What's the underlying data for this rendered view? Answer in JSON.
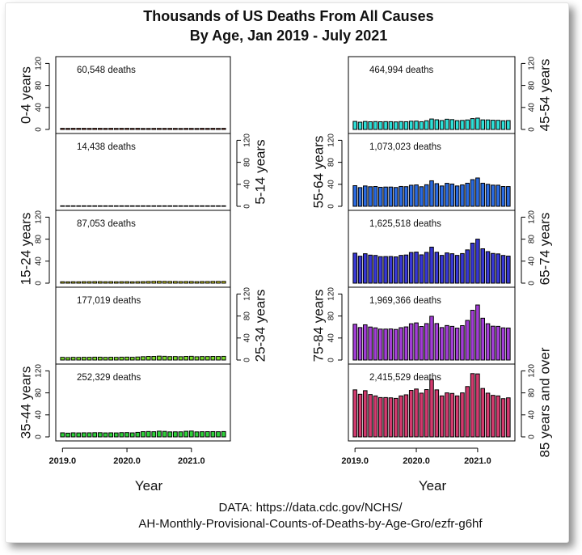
{
  "chart_data": {
    "type": "bar",
    "title_lines": [
      "Thousands of US Deaths From All Causes",
      "By Age, Jan 2019 - July 2021"
    ],
    "xlabel": "Year",
    "x_ticks": [
      "2019.0",
      "2020.0",
      "2021.0"
    ],
    "y_ticks": [
      "0",
      "40",
      "80",
      "120"
    ],
    "ylim": [
      0,
      125
    ],
    "source_lines": [
      "DATA: https://data.cdc.gov/NCHS/",
      "AH-Monthly-Provisional-Counts-of-Deaths-by-Age-Gro/ezfr-g6hf"
    ],
    "months": [
      "2019-01",
      "2019-02",
      "2019-03",
      "2019-04",
      "2019-05",
      "2019-06",
      "2019-07",
      "2019-08",
      "2019-09",
      "2019-10",
      "2019-11",
      "2019-12",
      "2020-01",
      "2020-02",
      "2020-03",
      "2020-04",
      "2020-05",
      "2020-06",
      "2020-07",
      "2020-08",
      "2020-09",
      "2020-10",
      "2020-11",
      "2020-12",
      "2021-01",
      "2021-02",
      "2021-03",
      "2021-04",
      "2021-05",
      "2021-06",
      "2021-07"
    ],
    "series": [
      {
        "name": "0-4 years",
        "total_label": "60,548 deaths",
        "color": "#e8401c",
        "values": [
          2.0,
          1.9,
          2.0,
          2.0,
          2.0,
          1.9,
          2.0,
          2.0,
          1.9,
          2.0,
          1.9,
          2.0,
          2.0,
          1.9,
          2.0,
          1.8,
          1.8,
          1.9,
          1.9,
          1.9,
          1.9,
          1.9,
          1.8,
          1.9,
          1.9,
          1.8,
          2.0,
          1.9,
          2.0,
          1.9,
          2.0
        ]
      },
      {
        "name": "5-14 years",
        "total_label": "14,438 deaths",
        "color": "#f58a1f",
        "values": [
          0.5,
          0.4,
          0.5,
          0.4,
          0.5,
          0.5,
          0.5,
          0.5,
          0.4,
          0.5,
          0.4,
          0.5,
          0.5,
          0.4,
          0.4,
          0.4,
          0.4,
          0.5,
          0.5,
          0.5,
          0.5,
          0.5,
          0.4,
          0.5,
          0.5,
          0.4,
          0.5,
          0.5,
          0.5,
          0.5,
          0.5
        ]
      },
      {
        "name": "15-24 years",
        "total_label": "87,053 deaths",
        "color": "#e3e32a",
        "values": [
          2.6,
          2.4,
          2.6,
          2.5,
          2.7,
          2.7,
          2.8,
          2.8,
          2.6,
          2.7,
          2.5,
          2.7,
          2.7,
          2.5,
          2.7,
          2.8,
          3.1,
          3.3,
          3.4,
          3.3,
          3.1,
          3.1,
          2.9,
          3.0,
          3.0,
          2.7,
          3.0,
          3.0,
          3.2,
          3.2,
          3.3
        ]
      },
      {
        "name": "25-34 years",
        "total_label": "177,019 deaths",
        "color": "#7ce02a",
        "values": [
          4.9,
          4.5,
          4.9,
          4.8,
          5.0,
          5.0,
          5.2,
          5.2,
          4.9,
          5.1,
          4.9,
          5.2,
          5.3,
          5.0,
          5.5,
          6.1,
          6.6,
          6.6,
          7.1,
          6.8,
          6.3,
          6.4,
          6.1,
          6.6,
          6.8,
          6.0,
          6.4,
          6.4,
          6.6,
          6.5,
          6.7
        ]
      },
      {
        "name": "35-44 years",
        "total_label": "252,329 deaths",
        "color": "#2ed13a",
        "values": [
          7.4,
          6.8,
          7.4,
          7.2,
          7.4,
          7.4,
          7.6,
          7.6,
          7.2,
          7.4,
          7.2,
          7.7,
          7.8,
          7.3,
          8.2,
          9.5,
          9.8,
          9.4,
          10.4,
          10.0,
          9.1,
          9.2,
          9.2,
          10.2,
          10.6,
          9.1,
          9.4,
          9.5,
          9.6,
          9.4,
          9.7
        ]
      },
      {
        "name": "45-54 years",
        "total_label": "464,994 deaths",
        "color": "#2ee0d8",
        "values": [
          14.6,
          13.2,
          14.5,
          14.0,
          14.3,
          14.0,
          14.2,
          14.1,
          13.7,
          14.3,
          14.1,
          15.0,
          15.2,
          14.1,
          15.8,
          19.0,
          17.6,
          16.2,
          18.6,
          17.9,
          16.0,
          16.4,
          17.3,
          19.7,
          20.6,
          17.4,
          17.3,
          16.8,
          16.6,
          15.8,
          16.2
        ]
      },
      {
        "name": "55-64 years",
        "total_label": "1,073,023 deaths",
        "color": "#2a6ae0",
        "values": [
          37.5,
          34.0,
          37.0,
          35.6,
          36.0,
          34.6,
          35.0,
          35.0,
          34.2,
          36.1,
          35.7,
          38.3,
          38.9,
          35.6,
          39.2,
          46.4,
          41.2,
          37.0,
          41.8,
          40.5,
          37.0,
          38.9,
          42.0,
          48.5,
          51.5,
          42.0,
          40.0,
          38.5,
          38.4,
          36.0,
          35.9
        ]
      },
      {
        "name": "65-74 years",
        "total_label": "1,625,518 deaths",
        "color": "#3737d4",
        "values": [
          54.5,
          49.0,
          53.5,
          51.0,
          50.4,
          48.2,
          48.4,
          48.5,
          47.8,
          50.5,
          51.2,
          55.8,
          56.5,
          51.5,
          56.0,
          65.5,
          56.2,
          50.5,
          55.0,
          53.5,
          50.5,
          53.8,
          60.5,
          72.8,
          80.0,
          62.5,
          57.4,
          54.0,
          53.2,
          50.4,
          49.2
        ]
      },
      {
        "name": "75-84 years",
        "total_label": "1,969,366 deaths",
        "color": "#a23dd6",
        "values": [
          65.0,
          59.0,
          64.0,
          60.0,
          58.5,
          56.2,
          56.2,
          56.5,
          55.6,
          58.8,
          60.2,
          66.0,
          67.5,
          61.0,
          66.2,
          79.5,
          66.3,
          59.0,
          62.7,
          61.2,
          58.0,
          62.5,
          72.0,
          90.5,
          100.0,
          76.0,
          66.0,
          61.5,
          61.2,
          58.5,
          58.2
        ]
      },
      {
        "name": "85 years and over",
        "total_label": "2,415,529 deaths",
        "color": "#d23a6e",
        "values": [
          85.5,
          77.5,
          84.0,
          77.0,
          74.5,
          71.5,
          71.5,
          71.0,
          70.0,
          74.5,
          76.5,
          84.5,
          87.0,
          79.5,
          86.0,
          104.5,
          85.5,
          74.5,
          80.0,
          79.0,
          74.5,
          80.0,
          91.5,
          115.0,
          114.5,
          88.0,
          79.5,
          75.5,
          74.5,
          69.5,
          71.0
        ]
      }
    ]
  }
}
